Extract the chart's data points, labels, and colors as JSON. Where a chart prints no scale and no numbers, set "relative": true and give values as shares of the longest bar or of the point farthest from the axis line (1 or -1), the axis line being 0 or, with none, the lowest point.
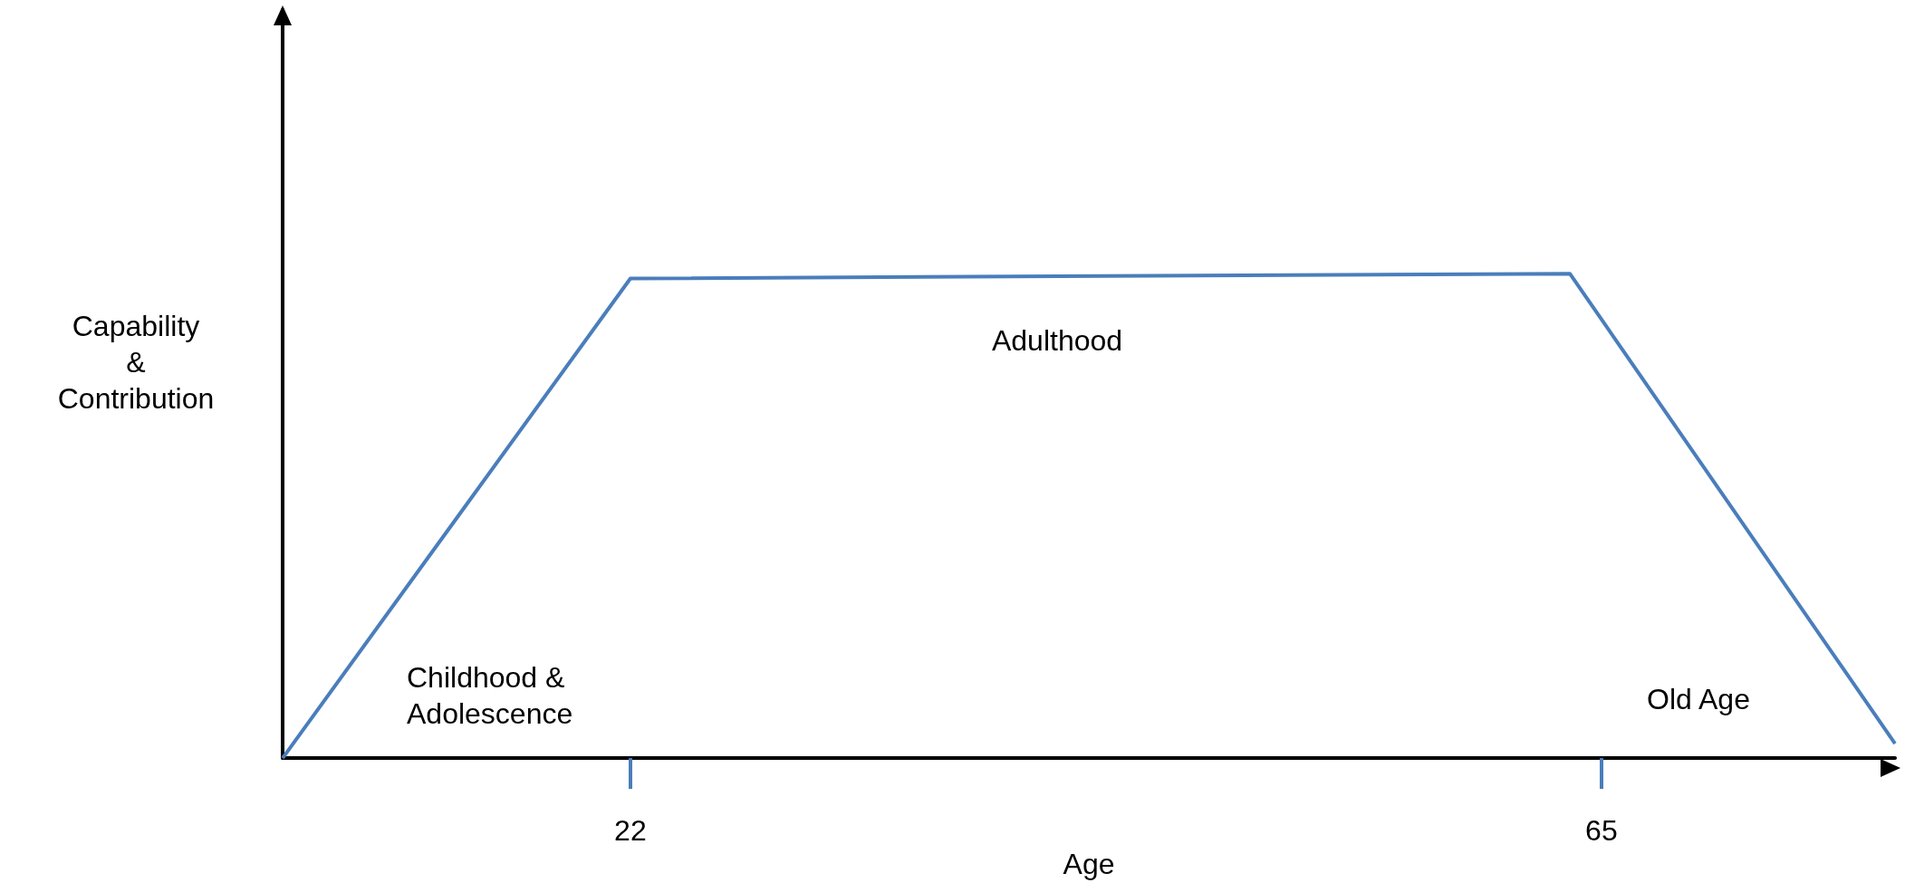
{
  "chart_data": {
    "type": "line",
    "relative": true,
    "xlabel": "Age",
    "ylabel": "Capability & Contribution",
    "x": [
      6.6,
      22,
      63.6,
      78
    ],
    "series": [
      {
        "color": "#4a7ebb",
        "values": [
          0,
          0.99,
          1,
          0.03
        ]
      }
    ],
    "xlim": [
      6.6,
      78
    ],
    "xticks": [
      22,
      65
    ],
    "marker": "none",
    "line_style": "solid",
    "grid": false,
    "annotations": [
      "Childhood & Adolescence",
      "Adulthood",
      "Old Age"
    ]
  }
}
